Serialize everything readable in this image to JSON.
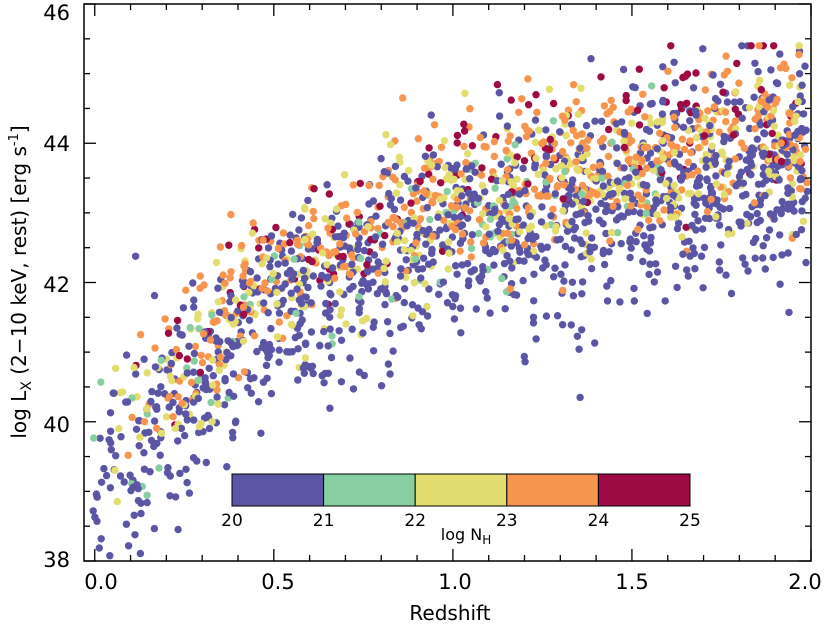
{
  "chart_data": {
    "type": "scatter",
    "xlabel": "Redshift",
    "ylabel_parts": [
      "log L",
      "X",
      " (2−10 keV, rest) [erg s",
      "-1",
      "]"
    ],
    "xlim": [
      -0.03,
      2.0
    ],
    "ylim": [
      38,
      46
    ],
    "xticks": [
      0.0,
      0.5,
      1.0,
      1.5,
      2.0
    ],
    "xtick_labels": [
      "0.0",
      "0.5",
      "1.0",
      "1.5",
      "2.0"
    ],
    "yticks": [
      38,
      40,
      42,
      44,
      46
    ],
    "ytick_labels": [
      "38",
      "40",
      "42",
      "44",
      "46"
    ],
    "grid": false,
    "point_count": 2200,
    "colorbar": {
      "variable_parts": [
        "log N",
        "H"
      ],
      "ticks": [
        "20",
        "21",
        "22",
        "23",
        "24",
        "25"
      ],
      "bins": [
        {
          "range": [
            20,
            21
          ],
          "color": "#5b55a5"
        },
        {
          "range": [
            21,
            22
          ],
          "color": "#87cfa0"
        },
        {
          "range": [
            22,
            23
          ],
          "color": "#e3dc6e"
        },
        {
          "range": [
            23,
            24
          ],
          "color": "#f7954e"
        },
        {
          "range": [
            24,
            25
          ],
          "color": "#9d0a44"
        }
      ]
    },
    "series": [
      {
        "name": "log N_H 20-21",
        "color": "#5b55a5",
        "fraction": 0.52,
        "z_range": [
          -0.02,
          1.99
        ],
        "lx_spread": 0.75,
        "lx_offset": -0.25
      },
      {
        "name": "log N_H 21-22",
        "color": "#87cfa0",
        "fraction": 0.04,
        "z_range": [
          -0.02,
          1.6
        ],
        "lx_spread": 0.6,
        "lx_offset": 0.0
      },
      {
        "name": "log N_H 22-23",
        "color": "#e3dc6e",
        "fraction": 0.16,
        "z_range": [
          0.05,
          1.99
        ],
        "lx_spread": 0.6,
        "lx_offset": 0.15
      },
      {
        "name": "log N_H 23-24",
        "color": "#f7954e",
        "fraction": 0.22,
        "z_range": [
          0.08,
          1.99
        ],
        "lx_spread": 0.55,
        "lx_offset": 0.35
      },
      {
        "name": "log N_H 24-25",
        "color": "#9d0a44",
        "fraction": 0.06,
        "z_range": [
          0.1,
          1.99
        ],
        "lx_spread": 0.6,
        "lx_offset": 0.6
      }
    ],
    "trend": {
      "description": "log Lx lower envelope rises with redshift",
      "lx_at_z": [
        [
          0.0,
          38.8
        ],
        [
          0.5,
          41.2
        ],
        [
          1.0,
          42.3
        ],
        [
          1.5,
          42.9
        ],
        [
          2.0,
          43.3
        ]
      ]
    }
  }
}
